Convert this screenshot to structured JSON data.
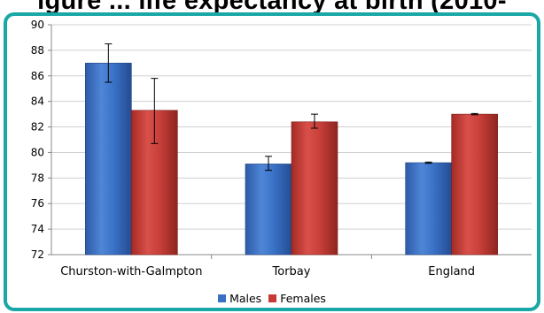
{
  "header_text": "igure ... life expectancy at birth (2010-",
  "chart_data": {
    "type": "bar",
    "categories": [
      "Churston-with-Galmpton",
      "Torbay",
      "England"
    ],
    "series": [
      {
        "name": "Males",
        "color": "#3a70c2",
        "values": [
          87.0,
          79.1,
          79.2
        ],
        "err_low": [
          85.5,
          78.6,
          79.15
        ],
        "err_high": [
          88.5,
          79.7,
          79.25
        ]
      },
      {
        "name": "Females",
        "color": "#c53a33",
        "values": [
          83.3,
          82.4,
          83.0
        ],
        "err_low": [
          80.7,
          81.9,
          82.95
        ],
        "err_high": [
          85.8,
          83.0,
          83.05
        ]
      }
    ],
    "yticks": [
      "72",
      "74",
      "76",
      "78",
      "80",
      "82",
      "84",
      "86",
      "88",
      "90"
    ],
    "ylim": [
      72,
      90
    ],
    "grid": true,
    "legend_position": "bottom",
    "error_bars": true
  }
}
